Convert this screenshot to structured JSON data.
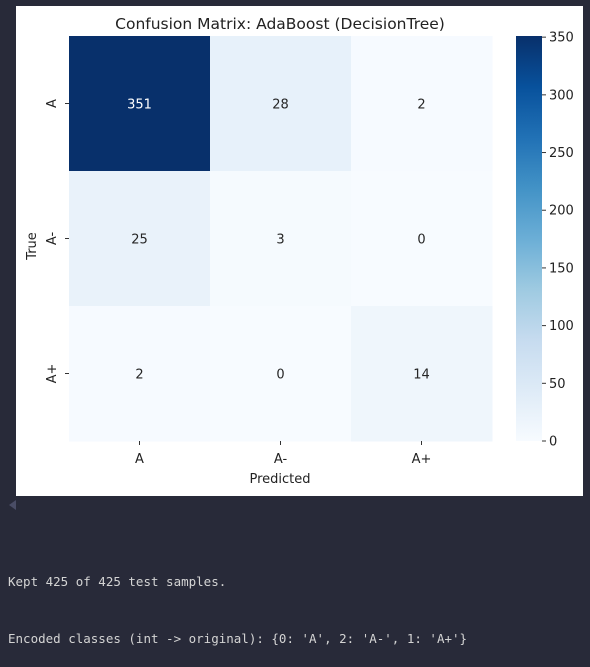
{
  "chart_data": {
    "type": "heatmap",
    "title": "Confusion Matrix: AdaBoost (DecisionTree)",
    "xlabel": "Predicted",
    "ylabel": "True",
    "x_categories": [
      "A",
      "A-",
      "A+"
    ],
    "y_categories": [
      "A",
      "A-",
      "A+"
    ],
    "values": [
      [
        351,
        28,
        2
      ],
      [
        25,
        3,
        0
      ],
      [
        2,
        0,
        14
      ]
    ],
    "colormap": "Blues",
    "colorbar": {
      "min": 0,
      "max": 351,
      "ticks": [
        0,
        50,
        100,
        150,
        200,
        250,
        300,
        350
      ]
    }
  },
  "console": {
    "lines": [
      "Kept 425 of 425 test samples.",
      "Encoded classes (int -> original): {0: 'A', 2: 'A-', 1: 'A+'}"
    ]
  },
  "colors": {
    "background": "#282a39",
    "figure": "#ffffff",
    "text_dark": "#222222",
    "console_text": "#d4d4d4"
  }
}
